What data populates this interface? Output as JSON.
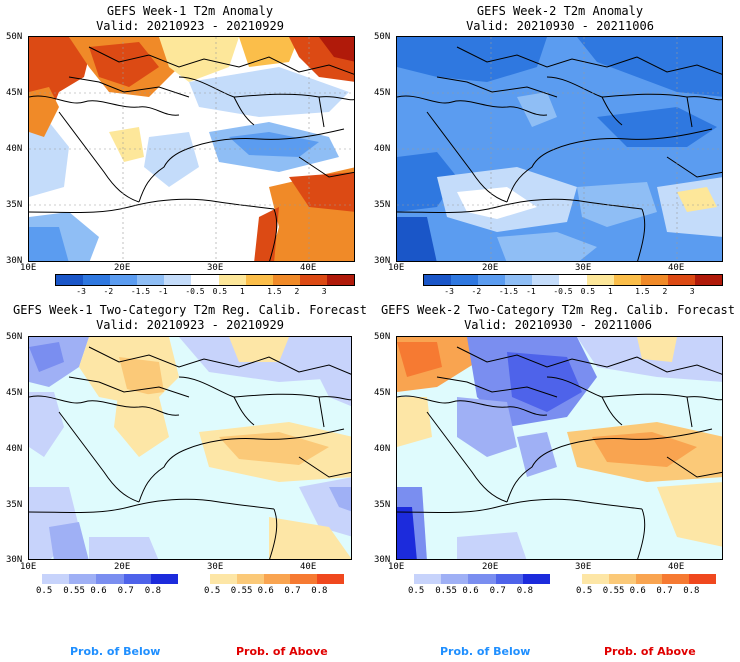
{
  "panels": [
    {
      "title": "GEFS Week-1 T2m Anomaly",
      "valid": "Valid: 20210923 - 20210929"
    },
    {
      "title": "GEFS Week-2 T2m Anomaly",
      "valid": "Valid: 20210930 - 20211006"
    },
    {
      "title": "GEFS Week-1 Two-Category T2m Reg. Calib. Forecast",
      "valid": "Valid: 20210923 - 20210929"
    },
    {
      "title": "GEFS Week-2 Two-Category T2m Reg. Calib. Forecast",
      "valid": "Valid: 20210930 - 20211006"
    }
  ],
  "lat_ticks": [
    "50N",
    "45N",
    "40N",
    "35N",
    "30N"
  ],
  "lon_ticks": [
    "10E",
    "20E",
    "30E",
    "40E"
  ],
  "anomaly_scale": {
    "labels": [
      "-3",
      "-2",
      "-1.5",
      "-1",
      "-0.5",
      "0.5",
      "1",
      "1.5",
      "2",
      "3"
    ],
    "colors": [
      "#1a56c8",
      "#2f78e0",
      "#5b9cf0",
      "#8fbef5",
      "#c4dcfa",
      "#ffffff",
      "#fde79a",
      "#fbbe4a",
      "#f08a28",
      "#dc4a14",
      "#b01a0a"
    ]
  },
  "below_scale": {
    "labels": [
      "0.5",
      "0.55",
      "0.6",
      "0.7",
      "0.8"
    ],
    "colors": [
      "#c7d3fb",
      "#9fb0f5",
      "#7a8ef0",
      "#4e63ea",
      "#1c2bdc"
    ]
  },
  "above_scale": {
    "labels": [
      "0.5",
      "0.55",
      "0.6",
      "0.7",
      "0.8"
    ],
    "colors": [
      "#fde6a6",
      "#fbc978",
      "#f9a450",
      "#f67a32",
      "#f0481e"
    ]
  },
  "legend": {
    "below": "Prob. of Below",
    "above": "Prob. of Above"
  },
  "colors": {
    "below_text": "#1f8fff",
    "above_text": "#e00000",
    "land_neutral": "#dffbfd"
  }
}
